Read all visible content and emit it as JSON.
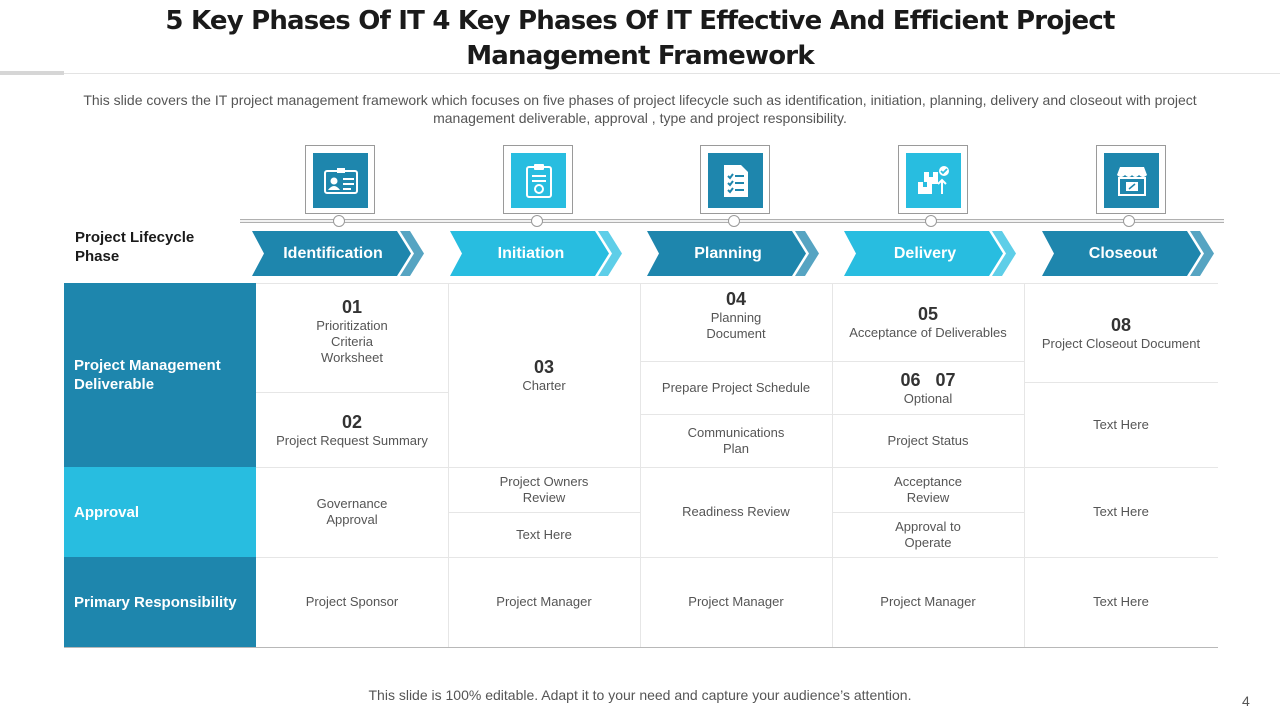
{
  "title": "5 Key Phases Of IT 4 Key Phases Of IT Effective And Efficient Project Management Framework",
  "subtitle": "This slide covers the IT project management framework which focuses on five phases of project lifecycle such as identification, initiation, planning, delivery and closeout with project management deliverable,  approval , type and project responsibility.",
  "lifecycle_label": "Project Lifecycle Phase",
  "colors": {
    "dark": "#1e86ad",
    "light": "#28bde0",
    "border": "#e6e6e6"
  },
  "phases": [
    {
      "label": "Identification",
      "icon": "id-card-icon",
      "color": "#1e86ad"
    },
    {
      "label": "Initiation",
      "icon": "clipboard-icon",
      "color": "#28bde0"
    },
    {
      "label": "Planning",
      "icon": "checklist-icon",
      "color": "#1e86ad"
    },
    {
      "label": "Delivery",
      "icon": "package-delivery-icon",
      "color": "#28bde0"
    },
    {
      "label": "Closeout",
      "icon": "store-closed-icon",
      "color": "#1e86ad"
    }
  ],
  "rows": {
    "deliverable": "Project Management Deliverable",
    "approval": "Approval",
    "responsibility": "Primary Responsibility"
  },
  "deliverables": {
    "c1a": {
      "num": "01",
      "text": "Prioritization Criteria Worksheet"
    },
    "c1b": {
      "num": "02",
      "text": "Project Request Summary"
    },
    "c2": {
      "num": "03",
      "text": "Charter"
    },
    "c3a": {
      "num": "04",
      "text": "Planning Document"
    },
    "c3b": {
      "text": "Prepare  Project Schedule"
    },
    "c3c": {
      "text": "Communications Plan"
    },
    "c4a": {
      "num": "05",
      "text": "Acceptance of Deliverables"
    },
    "c4b": {
      "num": "06   07",
      "text": "Optional"
    },
    "c4c": {
      "text": "Project Status"
    },
    "c5a": {
      "num": "08",
      "text": "Project Closeout Document"
    },
    "c5b": {
      "text": "Text Here"
    }
  },
  "approvals": {
    "c1": "Governance Approval",
    "c2a": "Project Owners Review",
    "c2b": "Text Here",
    "c3": "Readiness Review",
    "c4a": "Acceptance Review",
    "c4b": "Approval to Operate",
    "c5": "Text Here"
  },
  "responsibilities": [
    "Project Sponsor",
    "Project Manager",
    "Project Manager",
    "Project Manager",
    "Text Here"
  ],
  "footer": "This slide is 100% editable.  Adapt it to your need and capture your audience’s attention.",
  "page_number": "4"
}
